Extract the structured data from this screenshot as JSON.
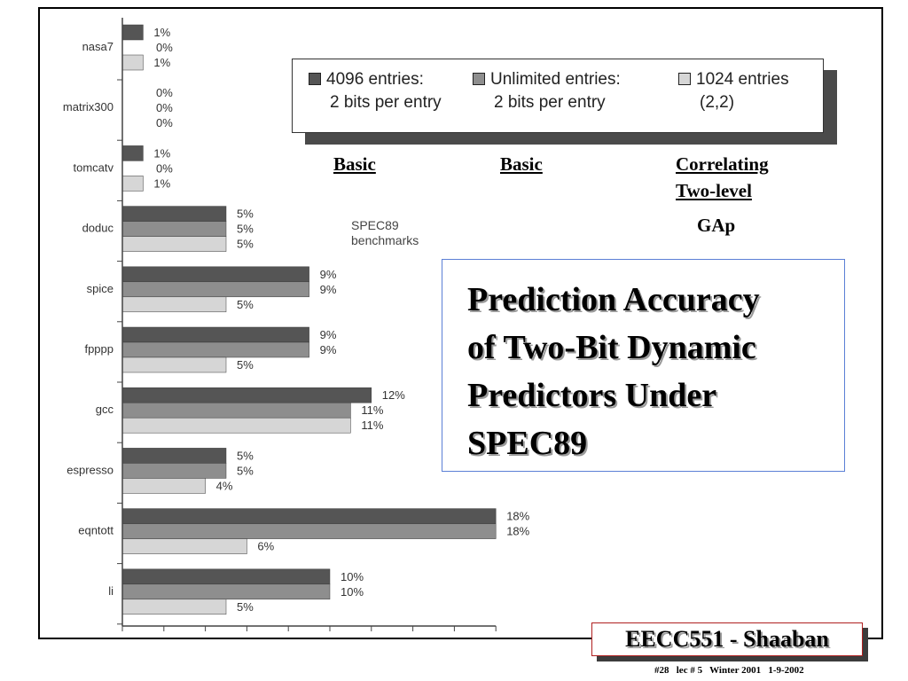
{
  "colors": {
    "dark": "#555555",
    "mid": "#8e8e8e",
    "light": "#d6d6d6",
    "axis": "#444444"
  },
  "chart_data": {
    "type": "bar",
    "orientation": "horizontal",
    "categories": [
      "nasa7",
      "matrix300",
      "tomcatv",
      "doduc",
      "spice",
      "fpppp",
      "gcc",
      "espresso",
      "eqntott",
      "li"
    ],
    "series": [
      {
        "name": "4096 entries: 2 bits per entry",
        "values": [
          1,
          0,
          1,
          5,
          9,
          9,
          12,
          5,
          18,
          10
        ],
        "labels": [
          "1%",
          "0%",
          "1%",
          "5%",
          "9%",
          "9%",
          "12%",
          "5%",
          "18%",
          "10%"
        ]
      },
      {
        "name": "Unlimited entries: 2 bits per entry",
        "values": [
          0,
          0,
          0,
          5,
          9,
          9,
          11,
          5,
          18,
          10
        ],
        "labels": [
          "0%",
          "0%",
          "0%",
          "5%",
          "9%",
          "9%",
          "11%",
          "5%",
          "18%",
          "10%"
        ]
      },
      {
        "name": "1024 entries (2,2)",
        "values": [
          1,
          0,
          1,
          5,
          5,
          5,
          11,
          4,
          6,
          5
        ],
        "labels": [
          "1%",
          "0%",
          "1%",
          "5%",
          "5%",
          "5%",
          "11%",
          "4%",
          "6%",
          "5%"
        ]
      }
    ],
    "xlim": [
      0,
      18
    ],
    "legend_position": "top-right",
    "grid": false
  },
  "legend": [
    {
      "line1": "4096 entries:",
      "line2": "2 bits per entry",
      "color_key": "dark"
    },
    {
      "line1": "Unlimited entries:",
      "line2": "2 bits per entry",
      "color_key": "mid"
    },
    {
      "line1": "1024 entries",
      "line2": "(2,2)",
      "color_key": "light"
    }
  ],
  "tags": {
    "basic1": "Basic",
    "basic2": "Basic",
    "correlating": "Correlating",
    "two_level": "Two-level",
    "gap": "GAp"
  },
  "benchmarks_label": {
    "line1": "SPEC89",
    "line2": "benchmarks"
  },
  "title": {
    "line1": "Prediction Accuracy",
    "line2": "of Two-Bit Dynamic",
    "line3": "Predictors Under",
    "line4": "SPEC89"
  },
  "course": "EECC551 - Shaaban",
  "footer": "#28   lec # 5   Winter 2001   1-9-2002"
}
